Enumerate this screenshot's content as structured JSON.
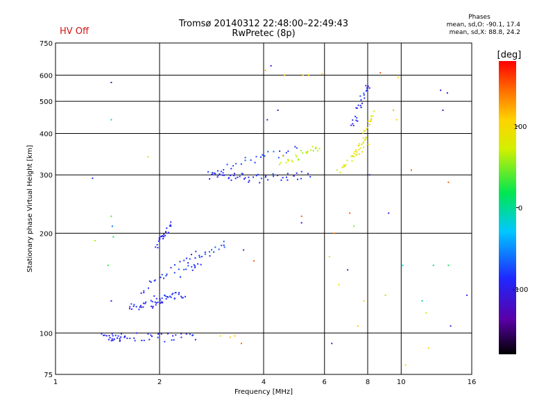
{
  "header": {
    "status": "HV Off",
    "title_line1": "Tromsø 20140312 22:48:00–22:49:43",
    "title_line2": "RwPretec (8p)",
    "stats_heading": "Phases",
    "stats_line1": "mean, sd,O: -90.1, 17.4",
    "stats_line2": "mean, sd,X:  88.8, 24.2"
  },
  "colorbar": {
    "label": "[deg]",
    "ticks": [
      {
        "value": 100,
        "label": "100"
      },
      {
        "value": 0,
        "label": "0"
      },
      {
        "value": -100,
        "label": "-100"
      }
    ],
    "range": [
      -180,
      180
    ]
  },
  "chart_data": {
    "type": "scatter",
    "title": "Tromsø 20140312 22:48:00–22:49:43",
    "subtitle": "RwPretec (8p)",
    "xlabel": "Frequency [MHz]",
    "ylabel": "Stationary phase Virtual Height [km]",
    "x_scale": "log",
    "y_scale": "log",
    "xlim": [
      1,
      16
    ],
    "ylim": [
      75,
      750
    ],
    "x_ticks": [
      1,
      2,
      4,
      6,
      8,
      10,
      16
    ],
    "x_tick_labels": [
      "1",
      "2",
      "4",
      "6",
      "8",
      "10",
      "16"
    ],
    "y_ticks": [
      75,
      100,
      200,
      300,
      400,
      500,
      600,
      750
    ],
    "y_tick_labels": [
      "75",
      "100",
      "200",
      "300",
      "400",
      "500",
      "600",
      "750"
    ],
    "grid": true,
    "color_by": "phase [deg]",
    "traces": [
      {
        "x": [
          1.38,
          1.6
        ],
        "y": [
          97,
          97
        ],
        "phase": -95
      },
      {
        "x": [
          1.65,
          2.55
        ],
        "y": [
          97,
          97
        ],
        "phase": -90
      },
      {
        "x": [
          1.62,
          2.05
        ],
        "y": [
          118,
          125
        ],
        "phase": -92
      },
      {
        "x": [
          1.95,
          2.35
        ],
        "y": [
          126,
          130
        ],
        "phase": -90
      },
      {
        "x": [
          1.75,
          2.6
        ],
        "y": [
          135,
          175
        ],
        "phase": -85
      },
      {
        "x": [
          2.3,
          3.1
        ],
        "y": [
          150,
          185
        ],
        "phase": -80
      },
      {
        "x": [
          1.95,
          2.15
        ],
        "y": [
          185,
          210
        ],
        "phase": -90
      },
      {
        "x": [
          2.75,
          3.6
        ],
        "y": [
          300,
          295
        ],
        "phase": -90
      },
      {
        "x": [
          3.6,
          5.4
        ],
        "y": [
          290,
          300
        ],
        "phase": -88
      },
      {
        "x": [
          2.85,
          5.0
        ],
        "y": [
          310,
          360
        ],
        "phase": -80
      },
      {
        "x": [
          4.5,
          5.8
        ],
        "y": [
          330,
          360
        ],
        "phase": 70
      },
      {
        "x": [
          6.6,
          8.0
        ],
        "y": [
          310,
          380
        ],
        "phase": 85
      },
      {
        "x": [
          7.4,
          8.3
        ],
        "y": [
          350,
          460
        ],
        "phase": 90
      },
      {
        "x": [
          7.2,
          8.1
        ],
        "y": [
          420,
          570
        ],
        "phase": -90
      }
    ],
    "points": [
      {
        "x": 1.45,
        "y": 570,
        "phase": -110
      },
      {
        "x": 1.45,
        "y": 440,
        "phase": -20
      },
      {
        "x": 1.85,
        "y": 340,
        "phase": 100
      },
      {
        "x": 1.28,
        "y": 293,
        "phase": -90
      },
      {
        "x": 1.3,
        "y": 190,
        "phase": 60
      },
      {
        "x": 1.42,
        "y": 160,
        "phase": 30
      },
      {
        "x": 1.45,
        "y": 225,
        "phase": 40
      },
      {
        "x": 1.46,
        "y": 210,
        "phase": -60
      },
      {
        "x": 1.47,
        "y": 195,
        "phase": 20
      },
      {
        "x": 1.45,
        "y": 125,
        "phase": -90
      },
      {
        "x": 3.2,
        "y": 97,
        "phase": 110
      },
      {
        "x": 3.3,
        "y": 98,
        "phase": 115
      },
      {
        "x": 3.0,
        "y": 98,
        "phase": 100
      },
      {
        "x": 3.45,
        "y": 93,
        "phase": 150
      },
      {
        "x": 3.75,
        "y": 165,
        "phase": 150
      },
      {
        "x": 3.5,
        "y": 178,
        "phase": -90
      },
      {
        "x": 4.05,
        "y": 620,
        "phase": 120
      },
      {
        "x": 4.2,
        "y": 640,
        "phase": -110
      },
      {
        "x": 4.6,
        "y": 600,
        "phase": 110
      },
      {
        "x": 4.4,
        "y": 470,
        "phase": -110
      },
      {
        "x": 4.1,
        "y": 440,
        "phase": -110
      },
      {
        "x": 5.2,
        "y": 600,
        "phase": 100
      },
      {
        "x": 5.4,
        "y": 600,
        "phase": 110
      },
      {
        "x": 5.9,
        "y": 605,
        "phase": 110
      },
      {
        "x": 5.15,
        "y": 225,
        "phase": 150
      },
      {
        "x": 5.15,
        "y": 215,
        "phase": -110
      },
      {
        "x": 6.3,
        "y": 93,
        "phase": -110
      },
      {
        "x": 6.2,
        "y": 170,
        "phase": 80
      },
      {
        "x": 6.4,
        "y": 200,
        "phase": 140
      },
      {
        "x": 6.6,
        "y": 140,
        "phase": 90
      },
      {
        "x": 7.0,
        "y": 155,
        "phase": -110
      },
      {
        "x": 7.1,
        "y": 230,
        "phase": 150
      },
      {
        "x": 7.3,
        "y": 210,
        "phase": 50
      },
      {
        "x": 7.5,
        "y": 105,
        "phase": 100
      },
      {
        "x": 7.8,
        "y": 125,
        "phase": 100
      },
      {
        "x": 8.1,
        "y": 300,
        "phase": -110
      },
      {
        "x": 8.7,
        "y": 610,
        "phase": 150
      },
      {
        "x": 9.2,
        "y": 230,
        "phase": -100
      },
      {
        "x": 9.0,
        "y": 130,
        "phase": 60
      },
      {
        "x": 10.1,
        "y": 160,
        "phase": -10
      },
      {
        "x": 10.3,
        "y": 80,
        "phase": 100
      },
      {
        "x": 10.7,
        "y": 310,
        "phase": 150
      },
      {
        "x": 11.5,
        "y": 125,
        "phase": 0
      },
      {
        "x": 11.8,
        "y": 115,
        "phase": 80
      },
      {
        "x": 12.0,
        "y": 90,
        "phase": 100
      },
      {
        "x": 12.4,
        "y": 160,
        "phase": -10
      },
      {
        "x": 13.0,
        "y": 540,
        "phase": -110
      },
      {
        "x": 13.2,
        "y": 470,
        "phase": -110
      },
      {
        "x": 13.6,
        "y": 530,
        "phase": -110
      },
      {
        "x": 13.7,
        "y": 285,
        "phase": 150
      },
      {
        "x": 13.7,
        "y": 160,
        "phase": 20
      },
      {
        "x": 13.9,
        "y": 105,
        "phase": -110
      },
      {
        "x": 15.5,
        "y": 130,
        "phase": -90
      },
      {
        "x": 9.8,
        "y": 590,
        "phase": 100
      },
      {
        "x": 9.5,
        "y": 470,
        "phase": 120
      },
      {
        "x": 9.7,
        "y": 440,
        "phase": 110
      }
    ]
  }
}
